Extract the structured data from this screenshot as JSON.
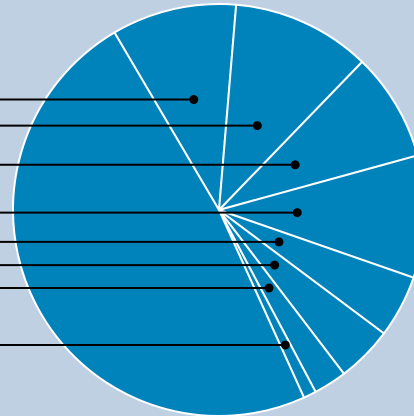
{
  "chart_data": {
    "type": "pie",
    "slices": [
      {
        "value": 9.8
      },
      {
        "value": 10.9
      },
      {
        "value": 8.5
      },
      {
        "value": 9.6
      },
      {
        "value": 4.9
      },
      {
        "value": 4.4
      },
      {
        "value": 2.6
      },
      {
        "value": 1.0
      },
      {
        "value": 48.3
      }
    ],
    "start_angle_deg": -30.5,
    "colors": {
      "background": "#bfd0e3",
      "slice_fill": "#0082bb",
      "slice_border": "#ffffff",
      "leader_line": "#000000"
    }
  }
}
